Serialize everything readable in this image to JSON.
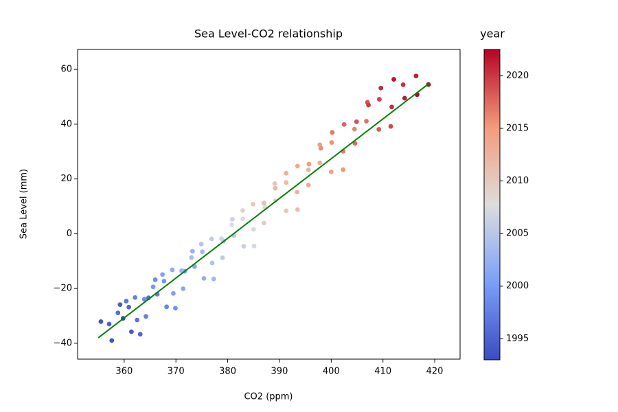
{
  "chart_data": {
    "type": "scatter",
    "title": "Sea Level-CO2 relationship",
    "x_label": "CO2 (ppm)",
    "y_label": "Sea Level (mm)",
    "xlim": [
      351,
      424.9
    ],
    "ylim": [
      -45.8,
      67.3
    ],
    "xticks": [
      360,
      370,
      380,
      390,
      400,
      410,
      420
    ],
    "yticks": [
      {
        "value": -40,
        "label": "−40"
      },
      {
        "value": -20,
        "label": "−20"
      },
      0,
      20,
      40,
      60
    ],
    "x": [
      359.8,
      357.6,
      355.5,
      361.4,
      359.2,
      357.1,
      363.1,
      360.9,
      358.8,
      364.7,
      362.5,
      360.4,
      366.4,
      364.2,
      362.1,
      368.2,
      366.0,
      363.9,
      369.9,
      367.7,
      365.6,
      371.7,
      369.5,
      367.4,
      373.6,
      371.4,
      369.3,
      375.4,
      373.2,
      371.1,
      377.3,
      375.1,
      373.0,
      379.2,
      377.0,
      374.9,
      381.2,
      379.0,
      376.9,
      383.1,
      380.9,
      378.8,
      385.1,
      382.9,
      380.8,
      387.2,
      385.0,
      382.9,
      389.2,
      387.0,
      384.9,
      391.3,
      389.1,
      387.0,
      393.5,
      391.3,
      389.2,
      395.6,
      393.4,
      391.3,
      397.8,
      395.6,
      393.5,
      400.0,
      397.8,
      395.7,
      402.3,
      400.1,
      398.0,
      404.5,
      402.3,
      400.2,
      406.8,
      404.6,
      402.5,
      409.2,
      407.0,
      404.9,
      411.5,
      409.3,
      407.2,
      413.9,
      411.7,
      409.6,
      416.4,
      414.2,
      412.1,
      418.8,
      416.6
    ],
    "y": [
      -30.9,
      -39.0,
      -32.1,
      -35.8,
      -25.9,
      -33.0,
      -36.7,
      -26.8,
      -28.9,
      -23.4,
      -31.5,
      -24.6,
      -22.1,
      -30.2,
      -23.3,
      -26.7,
      -16.8,
      -23.9,
      -27.2,
      -17.3,
      -19.4,
      -13.7,
      -21.8,
      -14.9,
      -12.0,
      -20.1,
      -13.2,
      -16.3,
      -6.4,
      -13.5,
      -16.5,
      -6.6,
      -8.7,
      -2.6,
      -10.7,
      -3.8,
      -0.7,
      -8.8,
      -1.9,
      -4.6,
      5.3,
      -1.8,
      -4.5,
      5.4,
      3.3,
      9.7,
      1.6,
      8.5,
      12.0,
      3.9,
      10.8,
      8.4,
      18.3,
      11.2,
      8.8,
      18.7,
      16.6,
      23.3,
      15.2,
      22.1,
      25.9,
      17.8,
      24.7,
      22.6,
      32.5,
      25.4,
      23.4,
      33.3,
      31.2,
      38.2,
      30.1,
      37.0,
      41.1,
      33.0,
      39.9,
      38.1,
      48.0,
      40.9,
      39.2,
      49.1,
      47.0,
      54.4,
      46.3,
      53.2,
      57.6,
      49.5,
      56.4,
      54.5,
      50.8
    ],
    "c": [
      1993.2,
      1993.5,
      1993.8,
      1994.2,
      1994.5,
      1994.8,
      1995.2,
      1995.5,
      1995.8,
      1996.2,
      1996.5,
      1996.8,
      1997.2,
      1997.5,
      1997.8,
      1998.2,
      1998.5,
      1998.8,
      1999.2,
      1999.5,
      1999.8,
      2000.2,
      2000.5,
      2000.8,
      2001.2,
      2001.5,
      2001.8,
      2002.2,
      2002.5,
      2002.8,
      2003.2,
      2003.5,
      2003.8,
      2004.2,
      2004.5,
      2004.8,
      2005.2,
      2005.5,
      2005.8,
      2006.2,
      2006.5,
      2006.8,
      2007.2,
      2007.5,
      2007.8,
      2008.2,
      2008.5,
      2008.8,
      2009.2,
      2009.5,
      2009.8,
      2010.2,
      2010.5,
      2010.8,
      2011.2,
      2011.5,
      2011.8,
      2012.2,
      2012.5,
      2012.8,
      2013.2,
      2013.5,
      2013.8,
      2014.2,
      2014.5,
      2014.8,
      2015.2,
      2015.5,
      2015.8,
      2016.2,
      2016.5,
      2016.8,
      2017.2,
      2017.5,
      2017.8,
      2018.2,
      2018.5,
      2018.8,
      2019.2,
      2019.5,
      2019.8,
      2020.2,
      2020.5,
      2020.8,
      2021.2,
      2021.5,
      2021.8,
      2022.2,
      2022.4
    ],
    "fit": {
      "x": [
        355,
        419
      ],
      "y": [
        -38,
        55
      ],
      "color": "#008000"
    },
    "colorbar": {
      "label": "year",
      "lim": [
        1993,
        2022.5
      ],
      "ticks": [
        1995,
        2000,
        2005,
        2010,
        2015,
        2020
      ],
      "colors": [
        "#3b4cc0",
        "#7b9ff9",
        "#dddddd",
        "#f49a7b",
        "#b40426"
      ]
    }
  }
}
